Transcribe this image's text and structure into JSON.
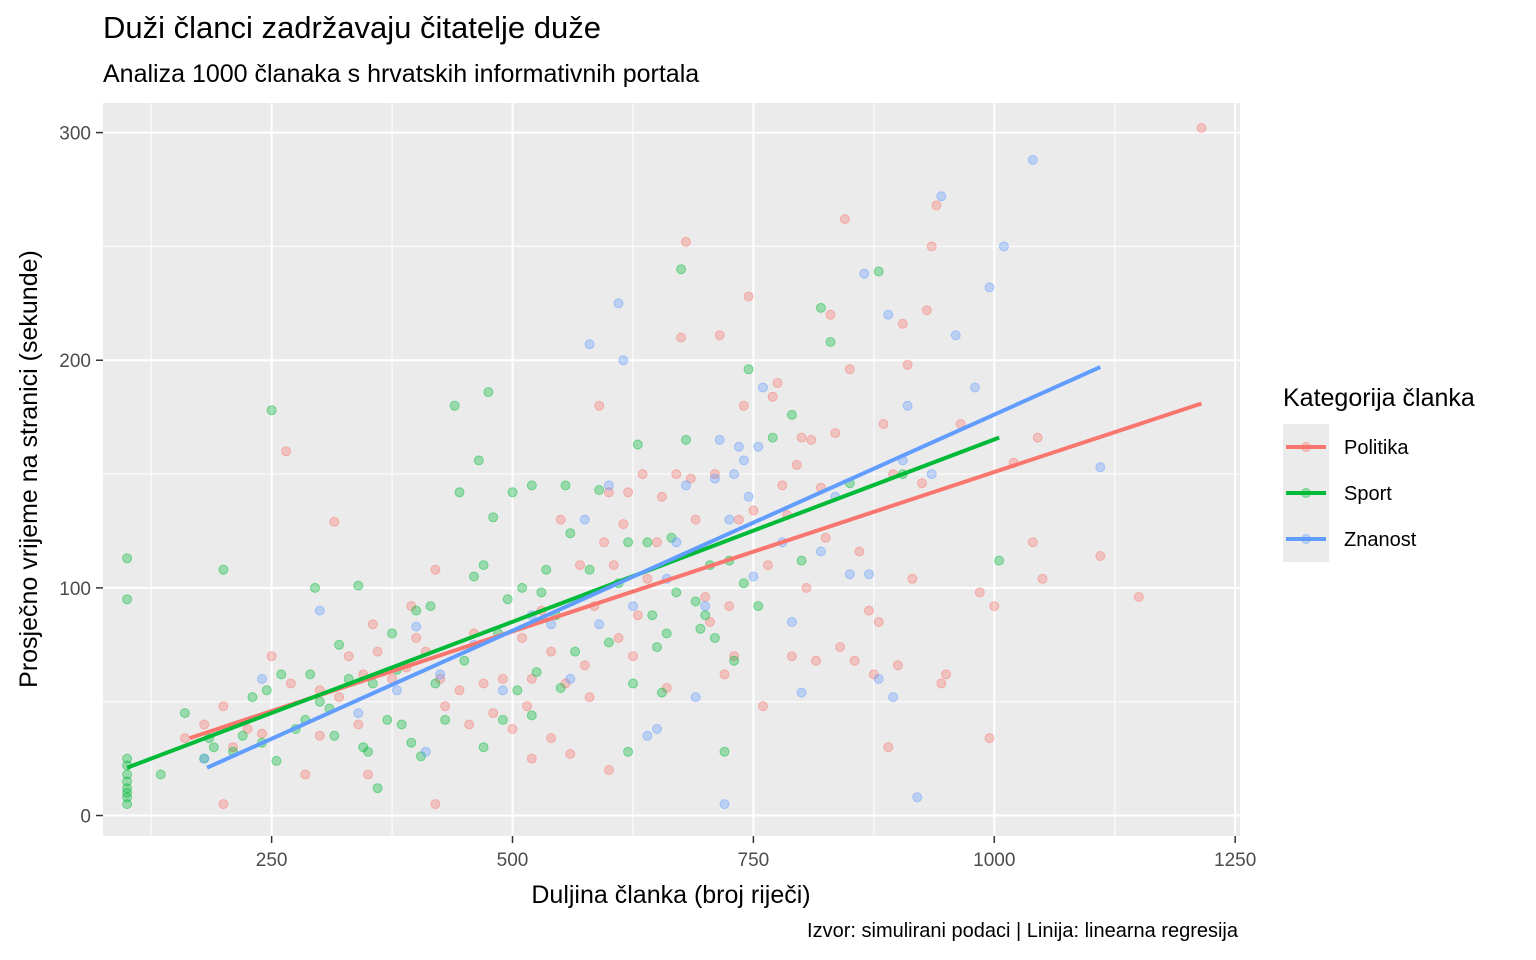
{
  "chart_data": {
    "type": "scatter",
    "title": "Duži članci zadržavaju čitatelje duže",
    "subtitle": "Analiza 1000 članaka s hrvatskih informativnih portala",
    "caption": "Izvor: simulirani podaci | Linija: linearna regresija",
    "xlabel": "Duljina članka (broj riječi)",
    "ylabel": "Prosječno vrijeme na stranici (sekunde)",
    "xlim": [
      75,
      1255
    ],
    "ylim": [
      -9,
      313
    ],
    "x_ticks": [
      250,
      500,
      750,
      1000,
      1250
    ],
    "x_tick_labels": [
      "250",
      "500",
      "750",
      "1000",
      "1250"
    ],
    "y_ticks": [
      0,
      100,
      200,
      300
    ],
    "y_tick_labels": [
      "0",
      "100",
      "200",
      "300"
    ],
    "grid": true,
    "legend": {
      "title": "Kategorija članka",
      "position": "right"
    },
    "series": [
      {
        "name": "Politika",
        "color": "#F8766D",
        "trend": [
          [
            165,
            34
          ],
          [
            1215,
            181
          ]
        ],
        "points": [
          [
            160,
            34
          ],
          [
            180,
            40
          ],
          [
            200,
            48
          ],
          [
            210,
            30
          ],
          [
            225,
            38
          ],
          [
            240,
            36
          ],
          [
            250,
            70
          ],
          [
            265,
            160
          ],
          [
            270,
            58
          ],
          [
            285,
            18
          ],
          [
            300,
            55
          ],
          [
            315,
            129
          ],
          [
            320,
            52
          ],
          [
            330,
            70
          ],
          [
            340,
            40
          ],
          [
            345,
            62
          ],
          [
            355,
            84
          ],
          [
            360,
            72
          ],
          [
            375,
            60
          ],
          [
            390,
            65
          ],
          [
            395,
            92
          ],
          [
            400,
            78
          ],
          [
            410,
            72
          ],
          [
            420,
            108
          ],
          [
            425,
            60
          ],
          [
            430,
            48
          ],
          [
            445,
            55
          ],
          [
            455,
            40
          ],
          [
            460,
            80
          ],
          [
            470,
            58
          ],
          [
            480,
            45
          ],
          [
            490,
            60
          ],
          [
            500,
            38
          ],
          [
            510,
            78
          ],
          [
            515,
            48
          ],
          [
            520,
            60
          ],
          [
            530,
            90
          ],
          [
            540,
            72
          ],
          [
            550,
            130
          ],
          [
            555,
            58
          ],
          [
            560,
            27
          ],
          [
            570,
            110
          ],
          [
            575,
            66
          ],
          [
            580,
            52
          ],
          [
            585,
            92
          ],
          [
            590,
            180
          ],
          [
            595,
            120
          ],
          [
            600,
            142
          ],
          [
            605,
            110
          ],
          [
            610,
            78
          ],
          [
            615,
            128
          ],
          [
            620,
            142
          ],
          [
            625,
            70
          ],
          [
            630,
            88
          ],
          [
            635,
            150
          ],
          [
            640,
            104
          ],
          [
            650,
            120
          ],
          [
            655,
            140
          ],
          [
            660,
            56
          ],
          [
            670,
            150
          ],
          [
            675,
            210
          ],
          [
            680,
            252
          ],
          [
            685,
            148
          ],
          [
            690,
            130
          ],
          [
            700,
            96
          ],
          [
            705,
            85
          ],
          [
            710,
            150
          ],
          [
            715,
            211
          ],
          [
            720,
            62
          ],
          [
            725,
            92
          ],
          [
            730,
            70
          ],
          [
            735,
            130
          ],
          [
            740,
            180
          ],
          [
            745,
            228
          ],
          [
            750,
            134
          ],
          [
            760,
            48
          ],
          [
            765,
            110
          ],
          [
            770,
            184
          ],
          [
            775,
            190
          ],
          [
            780,
            145
          ],
          [
            785,
            132
          ],
          [
            790,
            70
          ],
          [
            795,
            154
          ],
          [
            800,
            166
          ],
          [
            805,
            100
          ],
          [
            810,
            165
          ],
          [
            815,
            68
          ],
          [
            820,
            144
          ],
          [
            825,
            122
          ],
          [
            830,
            220
          ],
          [
            835,
            168
          ],
          [
            840,
            74
          ],
          [
            845,
            262
          ],
          [
            850,
            196
          ],
          [
            855,
            68
          ],
          [
            860,
            116
          ],
          [
            870,
            90
          ],
          [
            875,
            62
          ],
          [
            880,
            85
          ],
          [
            885,
            172
          ],
          [
            890,
            30
          ],
          [
            895,
            150
          ],
          [
            900,
            66
          ],
          [
            905,
            216
          ],
          [
            910,
            198
          ],
          [
            915,
            104
          ],
          [
            925,
            146
          ],
          [
            930,
            222
          ],
          [
            935,
            250
          ],
          [
            940,
            268
          ],
          [
            945,
            58
          ],
          [
            950,
            62
          ],
          [
            965,
            172
          ],
          [
            985,
            98
          ],
          [
            995,
            34
          ],
          [
            1000,
            92
          ],
          [
            1020,
            155
          ],
          [
            1040,
            120
          ],
          [
            1045,
            166
          ],
          [
            1050,
            104
          ],
          [
            1110,
            114
          ],
          [
            1150,
            96
          ],
          [
            1215,
            302
          ],
          [
            200,
            5
          ],
          [
            300,
            35
          ],
          [
            350,
            18
          ],
          [
            420,
            5
          ],
          [
            520,
            25
          ],
          [
            540,
            34
          ],
          [
            600,
            20
          ]
        ]
      },
      {
        "name": "Sport",
        "color": "#00BA38",
        "trend": [
          [
            100,
            21
          ],
          [
            1005,
            166
          ]
        ],
        "points": [
          [
            100,
            5
          ],
          [
            100,
            8
          ],
          [
            100,
            10
          ],
          [
            100,
            12
          ],
          [
            100,
            15
          ],
          [
            100,
            18
          ],
          [
            100,
            22
          ],
          [
            100,
            25
          ],
          [
            100,
            95
          ],
          [
            100,
            113
          ],
          [
            135,
            18
          ],
          [
            160,
            45
          ],
          [
            180,
            25
          ],
          [
            185,
            34
          ],
          [
            190,
            30
          ],
          [
            200,
            108
          ],
          [
            210,
            28
          ],
          [
            220,
            35
          ],
          [
            230,
            52
          ],
          [
            240,
            32
          ],
          [
            245,
            55
          ],
          [
            250,
            178
          ],
          [
            255,
            24
          ],
          [
            260,
            62
          ],
          [
            275,
            38
          ],
          [
            285,
            42
          ],
          [
            290,
            62
          ],
          [
            295,
            100
          ],
          [
            300,
            50
          ],
          [
            310,
            47
          ],
          [
            315,
            35
          ],
          [
            320,
            75
          ],
          [
            330,
            60
          ],
          [
            340,
            101
          ],
          [
            345,
            30
          ],
          [
            355,
            58
          ],
          [
            360,
            12
          ],
          [
            370,
            42
          ],
          [
            375,
            80
          ],
          [
            380,
            64
          ],
          [
            385,
            40
          ],
          [
            395,
            32
          ],
          [
            400,
            90
          ],
          [
            405,
            26
          ],
          [
            415,
            92
          ],
          [
            420,
            58
          ],
          [
            430,
            42
          ],
          [
            440,
            180
          ],
          [
            445,
            142
          ],
          [
            450,
            68
          ],
          [
            460,
            105
          ],
          [
            465,
            156
          ],
          [
            470,
            110
          ],
          [
            475,
            186
          ],
          [
            480,
            131
          ],
          [
            485,
            80
          ],
          [
            490,
            42
          ],
          [
            495,
            95
          ],
          [
            500,
            142
          ],
          [
            505,
            55
          ],
          [
            510,
            100
          ],
          [
            520,
            145
          ],
          [
            525,
            63
          ],
          [
            530,
            98
          ],
          [
            535,
            108
          ],
          [
            545,
            88
          ],
          [
            550,
            56
          ],
          [
            555,
            145
          ],
          [
            560,
            124
          ],
          [
            565,
            72
          ],
          [
            580,
            108
          ],
          [
            590,
            143
          ],
          [
            600,
            76
          ],
          [
            610,
            102
          ],
          [
            620,
            120
          ],
          [
            625,
            58
          ],
          [
            630,
            163
          ],
          [
            640,
            120
          ],
          [
            645,
            88
          ],
          [
            650,
            74
          ],
          [
            655,
            54
          ],
          [
            660,
            80
          ],
          [
            665,
            122
          ],
          [
            670,
            98
          ],
          [
            675,
            240
          ],
          [
            680,
            165
          ],
          [
            690,
            94
          ],
          [
            695,
            82
          ],
          [
            700,
            88
          ],
          [
            705,
            110
          ],
          [
            710,
            78
          ],
          [
            720,
            28
          ],
          [
            725,
            112
          ],
          [
            730,
            68
          ],
          [
            740,
            102
          ],
          [
            745,
            196
          ],
          [
            755,
            92
          ],
          [
            770,
            166
          ],
          [
            790,
            176
          ],
          [
            800,
            112
          ],
          [
            820,
            223
          ],
          [
            830,
            208
          ],
          [
            850,
            146
          ],
          [
            880,
            239
          ],
          [
            905,
            150
          ],
          [
            1005,
            112
          ],
          [
            350,
            28
          ],
          [
            470,
            30
          ],
          [
            520,
            44
          ],
          [
            620,
            28
          ]
        ]
      },
      {
        "name": "Znanost",
        "color": "#619CFF",
        "trend": [
          [
            183,
            21
          ],
          [
            1110,
            197
          ]
        ],
        "points": [
          [
            180,
            25
          ],
          [
            240,
            60
          ],
          [
            300,
            90
          ],
          [
            340,
            45
          ],
          [
            380,
            55
          ],
          [
            400,
            83
          ],
          [
            410,
            28
          ],
          [
            425,
            62
          ],
          [
            460,
            75
          ],
          [
            490,
            55
          ],
          [
            520,
            88
          ],
          [
            540,
            84
          ],
          [
            560,
            60
          ],
          [
            575,
            130
          ],
          [
            580,
            207
          ],
          [
            590,
            84
          ],
          [
            600,
            145
          ],
          [
            610,
            225
          ],
          [
            615,
            200
          ],
          [
            625,
            92
          ],
          [
            640,
            35
          ],
          [
            650,
            38
          ],
          [
            660,
            104
          ],
          [
            670,
            120
          ],
          [
            680,
            145
          ],
          [
            690,
            52
          ],
          [
            700,
            92
          ],
          [
            710,
            148
          ],
          [
            715,
            165
          ],
          [
            720,
            5
          ],
          [
            725,
            130
          ],
          [
            730,
            150
          ],
          [
            735,
            162
          ],
          [
            740,
            156
          ],
          [
            745,
            140
          ],
          [
            750,
            105
          ],
          [
            755,
            162
          ],
          [
            760,
            188
          ],
          [
            780,
            120
          ],
          [
            790,
            85
          ],
          [
            800,
            54
          ],
          [
            820,
            116
          ],
          [
            835,
            140
          ],
          [
            850,
            106
          ],
          [
            865,
            238
          ],
          [
            870,
            106
          ],
          [
            880,
            60
          ],
          [
            895,
            52
          ],
          [
            905,
            156
          ],
          [
            910,
            180
          ],
          [
            920,
            8
          ],
          [
            935,
            150
          ],
          [
            945,
            272
          ],
          [
            960,
            211
          ],
          [
            980,
            188
          ],
          [
            995,
            232
          ],
          [
            1010,
            250
          ],
          [
            1040,
            288
          ],
          [
            1110,
            153
          ],
          [
            890,
            220
          ]
        ]
      }
    ]
  }
}
